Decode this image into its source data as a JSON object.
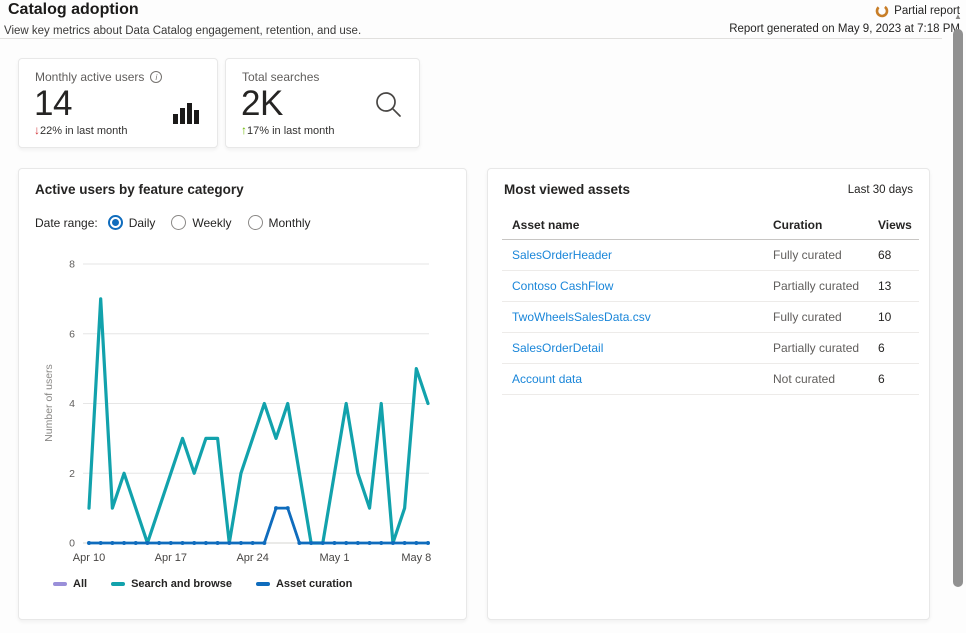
{
  "header": {
    "title": "Catalog adoption",
    "subtitle": "View key metrics about Data Catalog engagement, retention, and use.",
    "partial_report": "Partial report",
    "generated": "Report generated on May 9, 2023 at 7:18 PM"
  },
  "icons": {
    "info": "i",
    "down_arrow": "↓",
    "up_arrow": "↑",
    "scroll_up": "▲"
  },
  "colors": {
    "accent_blue": "#0F6CBD",
    "link_blue": "#1A86D9",
    "negative_red": "#D13438",
    "positive_green": "#6BB700",
    "partial_orange": "#C87E28"
  },
  "cards": [
    {
      "label": "Monthly active users",
      "value": "14",
      "direction": "down",
      "delta_text": "22% in last month",
      "icon": "bar-chart-icon"
    },
    {
      "label": "Total searches",
      "value": "2K",
      "direction": "up",
      "delta_text": "17% in last month",
      "icon": "search-icon"
    }
  ],
  "chart_panel": {
    "title": "Active users by feature category",
    "date_range_label": "Date range:",
    "options": [
      "Daily",
      "Weekly",
      "Monthly"
    ],
    "selected": "Daily"
  },
  "chart_data": {
    "type": "line",
    "title": "Active users by feature category",
    "ylabel": "Number of users",
    "ylim": [
      0,
      8
    ],
    "yticks": [
      0,
      2,
      4,
      6,
      8
    ],
    "x_tick_labels": [
      "Apr 10",
      "Apr 17",
      "Apr 24",
      "May 1",
      "May 8"
    ],
    "x_tick_days": [
      0,
      7,
      14,
      21,
      28
    ],
    "x_start": "Apr 10",
    "x_end": "May 9",
    "grid": true,
    "legend_position": "bottom",
    "series": [
      {
        "name": "All",
        "color": "#9A8FD9",
        "values": [],
        "markers": false
      },
      {
        "name": "Search and browse",
        "color": "#12A2AC",
        "markers": false,
        "values": [
          1,
          7,
          1,
          2,
          1,
          0,
          1,
          2,
          3,
          2,
          3,
          3,
          0,
          2,
          3,
          4,
          3,
          4,
          2,
          0,
          0,
          2,
          4,
          2,
          1,
          4,
          0,
          1,
          5,
          4
        ]
      },
      {
        "name": "Asset curation",
        "color": "#0F6CBD",
        "markers": true,
        "values": [
          0,
          0,
          0,
          0,
          0,
          0,
          0,
          0,
          0,
          0,
          0,
          0,
          0,
          0,
          0,
          0,
          1,
          1,
          0,
          0,
          0,
          0,
          0,
          0,
          0,
          0,
          0,
          0,
          0,
          0
        ]
      }
    ]
  },
  "assets_panel": {
    "title": "Most viewed assets",
    "period": "Last 30 days",
    "columns": [
      "Asset name",
      "Curation",
      "Views"
    ],
    "rows": [
      {
        "name": "SalesOrderHeader",
        "curation": "Fully curated",
        "views": "68"
      },
      {
        "name": "Contoso CashFlow",
        "curation": "Partially curated",
        "views": "13"
      },
      {
        "name": "TwoWheelsSalesData.csv",
        "curation": "Fully curated",
        "views": "10"
      },
      {
        "name": "SalesOrderDetail",
        "curation": "Partially curated",
        "views": "6"
      },
      {
        "name": "Account data",
        "curation": "Not curated",
        "views": "6"
      }
    ]
  }
}
